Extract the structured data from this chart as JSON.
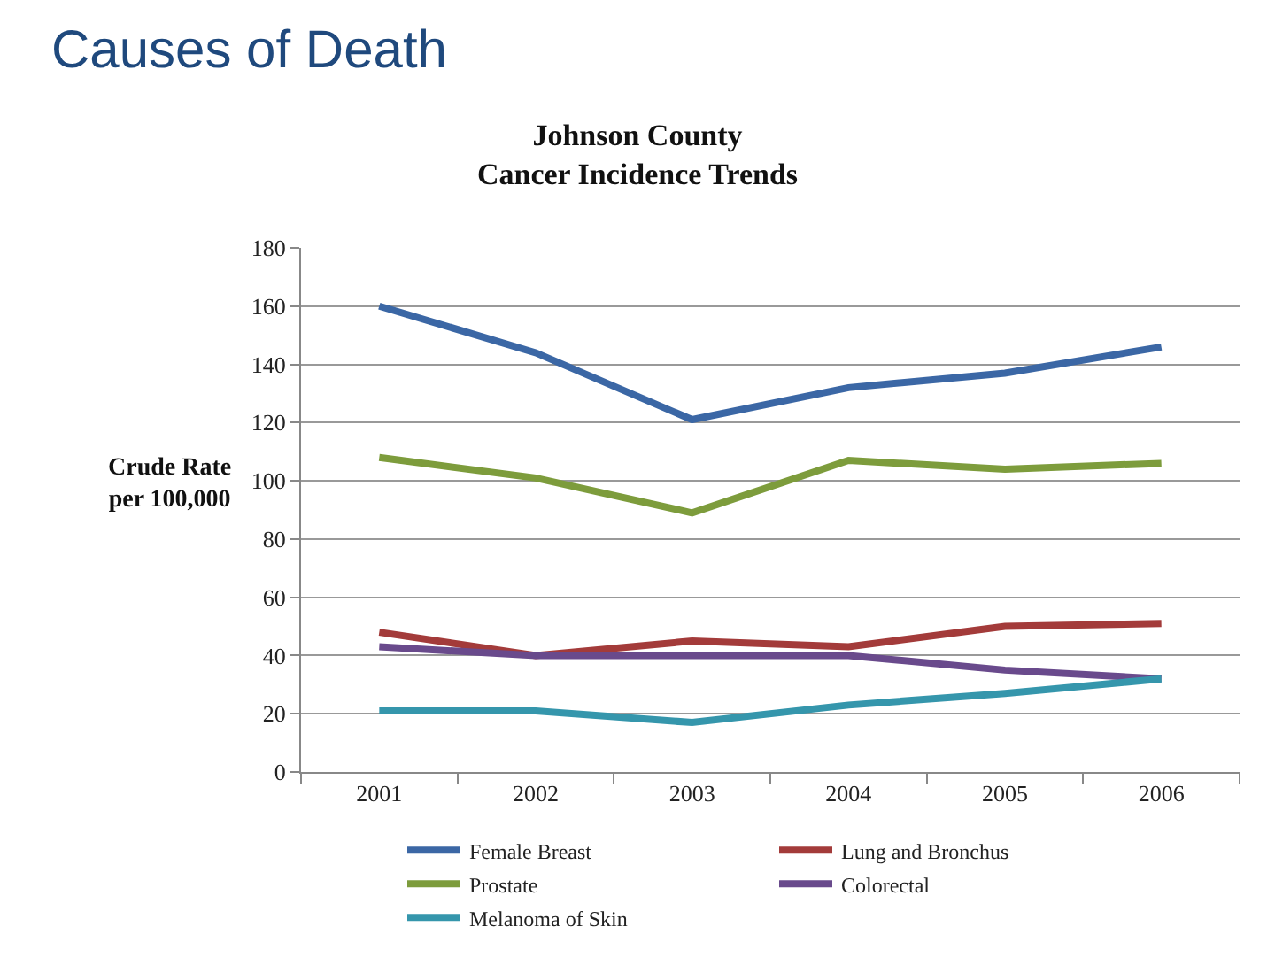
{
  "chart_data": {
    "type": "line",
    "title": "Johnson County\nCancer Incidence Trends",
    "ylabel": "Crude Rate\nper 100,000",
    "annotations": [
      "Causes of Death"
    ],
    "categories": [
      "2001",
      "2002",
      "2003",
      "2004",
      "2005",
      "2006"
    ],
    "series": [
      {
        "name": "Female Breast",
        "color": "#3b67a5",
        "values": [
          160,
          144,
          121,
          132,
          137,
          146
        ]
      },
      {
        "name": "Lung and Bronchus",
        "color": "#a33b3a",
        "values": [
          48,
          40,
          45,
          43,
          50,
          51
        ]
      },
      {
        "name": "Prostate",
        "color": "#7d9c3c",
        "values": [
          108,
          101,
          89,
          107,
          104,
          106
        ]
      },
      {
        "name": "Colorectal",
        "color": "#694a8c",
        "values": [
          43,
          40,
          40,
          40,
          35,
          32
        ]
      },
      {
        "name": "Melanoma of Skin",
        "color": "#3596ac",
        "values": [
          21,
          21,
          17,
          23,
          27,
          32
        ]
      }
    ],
    "ylim": [
      0,
      180
    ],
    "yticks": [
      0,
      20,
      40,
      60,
      80,
      100,
      120,
      140,
      160,
      180
    ],
    "grid": "y",
    "legend": "bottom",
    "marker": "none",
    "line_style": "solid"
  }
}
